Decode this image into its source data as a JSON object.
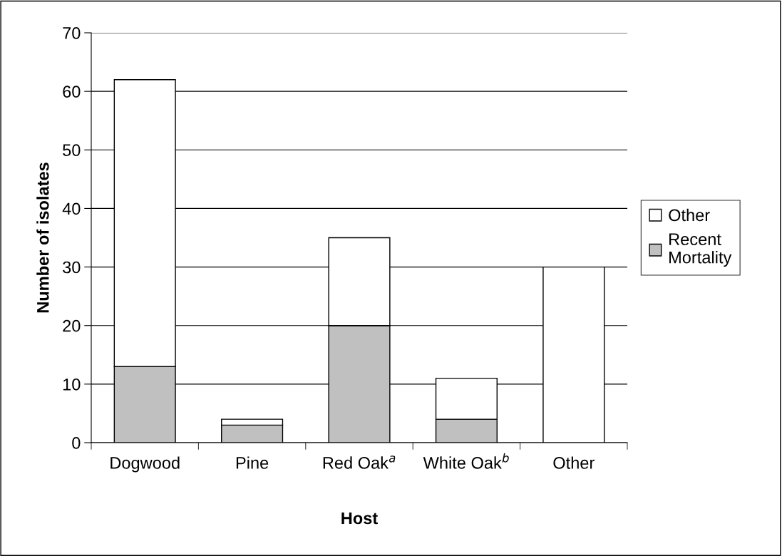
{
  "chart_data": {
    "type": "bar",
    "stacked": true,
    "xlabel": "Host",
    "ylabel": "Number of isolates",
    "categories": [
      "Dogwood",
      "Pine",
      "Red Oak$^{a}$",
      "White Oak$^{b}$",
      "Other"
    ],
    "series": [
      {
        "name": "Recent Mortality",
        "color": "#c0c0c0",
        "values": [
          13,
          3,
          20,
          4,
          0
        ]
      },
      {
        "name": "Other",
        "color": "#ffffff",
        "values": [
          49,
          1,
          15,
          7,
          30
        ]
      }
    ],
    "ylim": [
      0,
      70
    ],
    "yticks": [
      0,
      10,
      20,
      30,
      40,
      50,
      60,
      70
    ],
    "grid": "y",
    "legend": "right"
  }
}
